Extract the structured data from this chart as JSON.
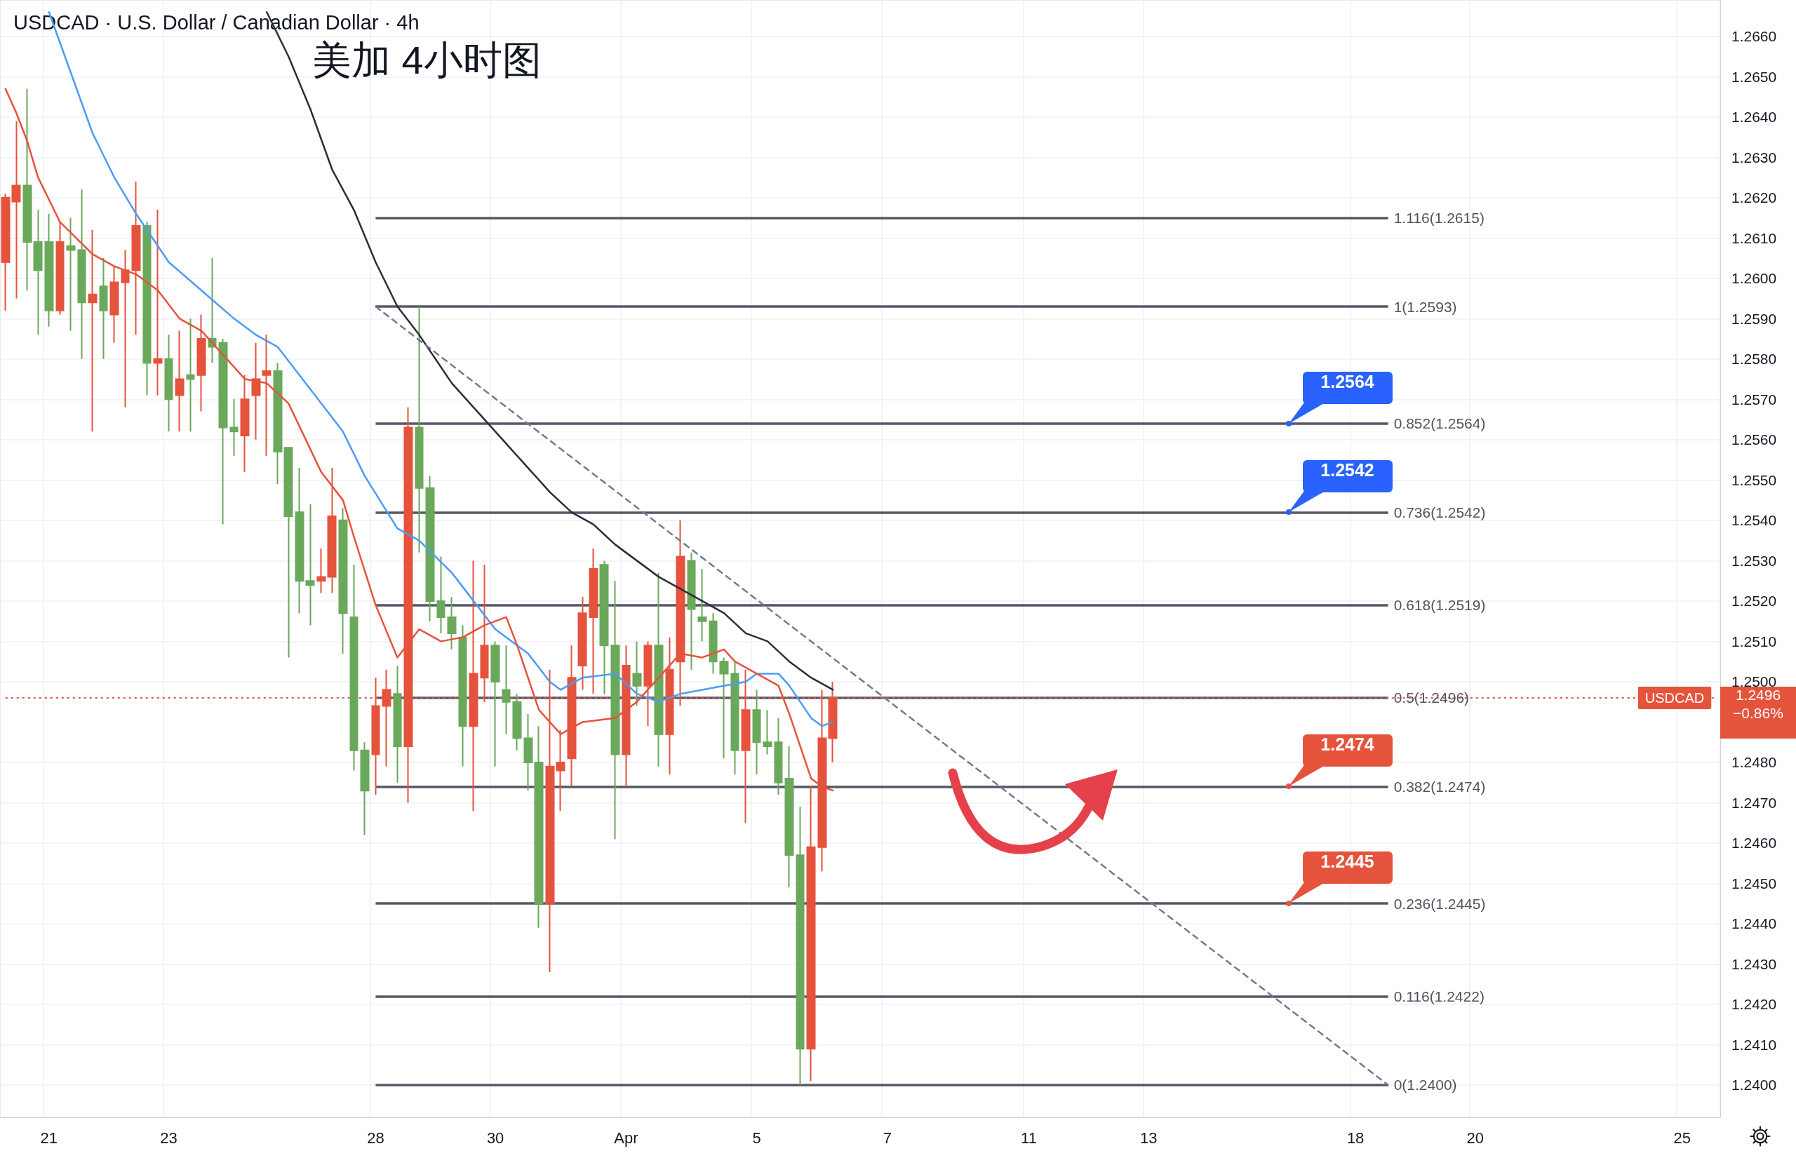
{
  "chart_data": {
    "type": "candlestick",
    "title": "USDCAD · U.S. Dollar / Canadian Dollar · 4h",
    "subtitle": "美加 4小时图",
    "categories": [
      null,
      null,
      null,
      null,
      "21",
      null,
      null,
      null,
      null,
      null,
      null,
      null,
      null,
      null,
      null,
      "23",
      null,
      null,
      null,
      null,
      null,
      null,
      null,
      null,
      null,
      null,
      null,
      null,
      null,
      null,
      null,
      null,
      null,
      null,
      "28",
      null,
      null,
      null,
      null,
      null,
      null,
      null,
      null,
      null,
      null,
      "30",
      null,
      null,
      null,
      null,
      null,
      null,
      null,
      null,
      null,
      null,
      null,
      "Apr",
      null,
      null,
      null,
      null,
      null,
      null,
      null,
      null,
      null,
      null,
      null,
      "5",
      null,
      null,
      null,
      null,
      null,
      null,
      null,
      null,
      null,
      null,
      null,
      "7",
      null,
      null,
      null,
      null,
      null,
      null,
      null,
      null,
      null,
      null,
      null,
      null,
      "11",
      null,
      null,
      null,
      null,
      null,
      null,
      null,
      null,
      null,
      null,
      "13",
      null,
      null,
      null,
      null,
      null,
      null,
      null,
      null,
      null,
      null,
      null,
      null,
      null,
      null,
      null,
      null,
      null,
      null,
      "18",
      null,
      null,
      null,
      null,
      null,
      null,
      null,
      null,
      null,
      null,
      "20",
      null,
      null,
      null,
      null,
      null,
      null,
      null,
      null,
      null,
      null,
      null,
      null,
      null,
      null,
      null,
      null,
      null,
      null,
      "25",
      null,
      null,
      null
    ],
    "ohlc": [
      [
        1.2604,
        1.2621,
        1.2592,
        1.262
      ],
      [
        1.2619,
        1.2639,
        1.2595,
        1.2623
      ],
      [
        1.2623,
        1.2647,
        1.2597,
        1.2609
      ],
      [
        1.2609,
        1.2617,
        1.2586,
        1.2602
      ],
      [
        1.2609,
        1.2616,
        1.2588,
        1.2592
      ],
      [
        1.2592,
        1.2614,
        1.2591,
        1.2609
      ],
      [
        1.2608,
        1.2615,
        1.2587,
        1.2607
      ],
      [
        1.2607,
        1.2622,
        1.258,
        1.2594
      ],
      [
        1.2594,
        1.2612,
        1.2562,
        1.2596
      ],
      [
        1.2598,
        1.2605,
        1.258,
        1.2592
      ],
      [
        1.2591,
        1.2603,
        1.2584,
        1.2599
      ],
      [
        1.2599,
        1.2607,
        1.2568,
        1.2602
      ],
      [
        1.2602,
        1.2624,
        1.2586,
        1.2613
      ],
      [
        1.2613,
        1.2614,
        1.2571,
        1.2579
      ],
      [
        1.2579,
        1.2617,
        1.2571,
        1.258
      ],
      [
        1.258,
        1.2586,
        1.2562,
        1.257
      ],
      [
        1.2571,
        1.2587,
        1.2562,
        1.2575
      ],
      [
        1.2576,
        1.259,
        1.2562,
        1.2575
      ],
      [
        1.2576,
        1.2591,
        1.2567,
        1.2585
      ],
      [
        1.2585,
        1.2605,
        1.2579,
        1.2583
      ],
      [
        1.2584,
        1.2585,
        1.2539,
        1.2563
      ],
      [
        1.2563,
        1.257,
        1.2556,
        1.2562
      ],
      [
        1.2561,
        1.2576,
        1.2552,
        1.257
      ],
      [
        1.2571,
        1.2584,
        1.256,
        1.2575
      ],
      [
        1.2576,
        1.2586,
        1.2556,
        1.2577
      ],
      [
        1.2577,
        1.2579,
        1.2549,
        1.2557
      ],
      [
        1.2558,
        1.2558,
        1.2506,
        1.2541
      ],
      [
        1.2542,
        1.2553,
        1.2517,
        1.2525
      ],
      [
        1.2525,
        1.2544,
        1.2514,
        1.2524
      ],
      [
        1.2525,
        1.2533,
        1.2522,
        1.2526
      ],
      [
        1.2526,
        1.2553,
        1.2522,
        1.2541
      ],
      [
        1.254,
        1.2543,
        1.2507,
        1.2517
      ],
      [
        1.2516,
        1.2529,
        1.2478,
        1.2483
      ],
      [
        1.2483,
        1.2485,
        1.2462,
        1.2473
      ],
      [
        1.2482,
        1.2501,
        1.2472,
        1.2494
      ],
      [
        1.2494,
        1.2503,
        1.2479,
        1.2498
      ],
      [
        1.2497,
        1.2504,
        1.2475,
        1.2484
      ],
      [
        1.2484,
        1.2568,
        1.247,
        1.2563
      ],
      [
        1.2563,
        1.2593,
        1.2532,
        1.2548
      ],
      [
        1.2548,
        1.2551,
        1.2515,
        1.252
      ],
      [
        1.252,
        1.2531,
        1.2512,
        1.2516
      ],
      [
        1.2516,
        1.2521,
        1.2508,
        1.2512
      ],
      [
        1.2511,
        1.2514,
        1.2479,
        1.2489
      ],
      [
        1.2489,
        1.253,
        1.2468,
        1.2502
      ],
      [
        1.2501,
        1.2529,
        1.2495,
        1.2509
      ],
      [
        1.2509,
        1.251,
        1.2479,
        1.25
      ],
      [
        1.2498,
        1.2509,
        1.2487,
        1.2495
      ],
      [
        1.2495,
        1.2497,
        1.2483,
        1.2486
      ],
      [
        1.2486,
        1.2492,
        1.2473,
        1.248
      ],
      [
        1.248,
        1.2489,
        1.2439,
        1.2445
      ],
      [
        1.2445,
        1.2503,
        1.2428,
        1.2479
      ],
      [
        1.2478,
        1.2488,
        1.2468,
        1.248
      ],
      [
        1.2481,
        1.2509,
        1.2474,
        1.2501
      ],
      [
        1.2504,
        1.2521,
        1.2498,
        1.2517
      ],
      [
        1.2516,
        1.2533,
        1.2497,
        1.2528
      ],
      [
        1.2529,
        1.253,
        1.2497,
        1.2509
      ],
      [
        1.2509,
        1.2525,
        1.2461,
        1.2482
      ],
      [
        1.2482,
        1.2509,
        1.2474,
        1.2504
      ],
      [
        1.2502,
        1.251,
        1.2494,
        1.2499
      ],
      [
        1.2499,
        1.251,
        1.2489,
        1.2509
      ],
      [
        1.2509,
        1.2527,
        1.2479,
        1.2487
      ],
      [
        1.2487,
        1.2511,
        1.2477,
        1.2503
      ],
      [
        1.2505,
        1.254,
        1.2494,
        1.2531
      ],
      [
        1.253,
        1.2532,
        1.2503,
        1.2518
      ],
      [
        1.2516,
        1.2528,
        1.251,
        1.2515
      ],
      [
        1.2515,
        1.2517,
        1.2502,
        1.2505
      ],
      [
        1.2505,
        1.2506,
        1.2481,
        1.2502
      ],
      [
        1.2502,
        1.2505,
        1.2477,
        1.2483
      ],
      [
        1.2483,
        1.2503,
        1.2465,
        1.2493
      ],
      [
        1.2493,
        1.2498,
        1.2477,
        1.2485
      ],
      [
        1.2485,
        1.2493,
        1.2482,
        1.2484
      ],
      [
        1.2485,
        1.2491,
        1.2472,
        1.2475
      ],
      [
        1.2476,
        1.2484,
        1.2449,
        1.2457
      ],
      [
        1.2457,
        1.2469,
        1.24,
        1.2409
      ],
      [
        1.2409,
        1.2474,
        1.2401,
        1.2459
      ],
      [
        1.2459,
        1.2498,
        1.2453,
        1.2486
      ],
      [
        1.2486,
        1.25,
        1.248,
        1.2496
      ],
      null,
      null,
      null,
      null,
      null,
      null,
      null,
      null,
      null,
      null,
      null,
      null,
      null,
      null,
      null,
      null,
      null,
      null,
      null,
      null,
      null,
      null,
      null,
      null,
      null,
      null,
      null,
      null,
      null,
      null,
      null,
      null,
      null,
      null,
      null,
      null,
      null,
      null,
      null,
      null,
      null,
      null,
      null,
      null,
      null,
      null,
      null,
      null,
      null,
      null,
      null,
      null,
      null,
      null,
      null,
      null,
      null,
      null,
      null,
      null,
      null,
      null,
      null,
      null,
      null,
      null,
      null,
      null,
      null,
      null,
      null,
      null,
      null,
      null,
      null,
      null,
      null,
      null,
      null,
      null,
      null
    ],
    "colors": [
      "#e5533d",
      "#e5533d",
      "#6aa85b",
      "#6aa85b",
      "#6aa85b",
      "#e5533d",
      "#6aa85b",
      "#6aa85b",
      "#e5533d",
      "#6aa85b",
      "#e5533d",
      "#e5533d",
      "#e5533d",
      "#6aa85b",
      "#e5533d",
      "#6aa85b",
      "#e5533d",
      "#6aa85b",
      "#e5533d",
      "#6aa85b",
      "#6aa85b",
      "#6aa85b",
      "#e5533d",
      "#e5533d",
      "#e5533d",
      "#6aa85b",
      "#6aa85b",
      "#6aa85b",
      "#6aa85b",
      "#e5533d",
      "#e5533d",
      "#6aa85b",
      "#6aa85b",
      "#6aa85b",
      "#e5533d",
      "#e5533d",
      "#6aa85b",
      "#e5533d",
      "#6aa85b",
      "#6aa85b",
      "#6aa85b",
      "#6aa85b",
      "#6aa85b",
      "#e5533d",
      "#e5533d",
      "#6aa85b",
      "#6aa85b",
      "#6aa85b",
      "#6aa85b",
      "#6aa85b",
      "#e5533d",
      "#e5533d",
      "#e5533d",
      "#e5533d",
      "#e5533d",
      "#6aa85b",
      "#6aa85b",
      "#e5533d",
      "#6aa85b",
      "#e5533d",
      "#6aa85b",
      "#e5533d",
      "#e5533d",
      "#6aa85b",
      "#6aa85b",
      "#6aa85b",
      "#6aa85b",
      "#6aa85b",
      "#e5533d",
      "#6aa85b",
      "#6aa85b",
      "#6aa85b",
      "#6aa85b",
      "#6aa85b",
      "#e5533d",
      "#e5533d",
      "#e5533d",
      null,
      null,
      null,
      null,
      null,
      null,
      null,
      null,
      null,
      null,
      null,
      null,
      null,
      null,
      null,
      null,
      null,
      null,
      null,
      null,
      null,
      null,
      null,
      null,
      null,
      null,
      null,
      null,
      null,
      null,
      null,
      null,
      null,
      null,
      null,
      null,
      null,
      null,
      null,
      null,
      null,
      null,
      null,
      null,
      null,
      null,
      null,
      null,
      null,
      null,
      null,
      null,
      null,
      null,
      null,
      null,
      null,
      null,
      null,
      null,
      null,
      null,
      null,
      null,
      null,
      null,
      null,
      null,
      null,
      null,
      null,
      null,
      null,
      null,
      null,
      null,
      null,
      null,
      null,
      null,
      null
    ],
    "series": [
      {
        "type": "line",
        "color": "#4b9cf5",
        "values": [
          null,
          null,
          null,
          null,
          1.2666,
          null,
          null,
          null,
          1.2636,
          null,
          1.2625,
          null,
          1.2616,
          null,
          null,
          1.2604,
          null,
          null,
          1.2597,
          null,
          null,
          1.259,
          null,
          1.2586,
          null,
          1.2583,
          null,
          1.2576,
          null,
          1.2569,
          null,
          1.2562,
          null,
          1.2551,
          null,
          null,
          1.2538,
          null,
          1.2535,
          null,
          null,
          1.2527,
          null,
          1.252,
          null,
          1.2513,
          null,
          null,
          1.2507,
          null,
          1.25,
          1.2498,
          null,
          1.2501,
          null,
          null,
          1.2502,
          null,
          1.2497,
          null,
          1.2495,
          null,
          1.2497,
          null,
          1.2498,
          null,
          1.2499,
          null,
          1.25,
          1.2502,
          null,
          1.2502,
          1.2499,
          null,
          1.2491,
          1.2489,
          1.249,
          null,
          null,
          null,
          null,
          null,
          null,
          null,
          null,
          null,
          null,
          null,
          null,
          null,
          null,
          null,
          null,
          null,
          null,
          null,
          null,
          null,
          null,
          null,
          null,
          null,
          null,
          null,
          null,
          null,
          null,
          null,
          null,
          null,
          null,
          null,
          null,
          null,
          null,
          null,
          null,
          null,
          null,
          null,
          null,
          null,
          null,
          null,
          null,
          null,
          null,
          null,
          null,
          null,
          null,
          null,
          null,
          null,
          null,
          null,
          null,
          null,
          null,
          null,
          null,
          null,
          null,
          null,
          null,
          null,
          null,
          null,
          null,
          null,
          null,
          null,
          null,
          null,
          null,
          null,
          null,
          null
        ]
      },
      {
        "type": "line",
        "color": "#e5533d",
        "values": [
          1.2647,
          1.2641,
          1.2634,
          1.2625,
          null,
          1.2614,
          null,
          null,
          1.2606,
          null,
          1.2603,
          null,
          1.2601,
          null,
          1.2597,
          null,
          1.259,
          null,
          1.2587,
          null,
          null,
          null,
          1.2575,
          null,
          1.2574,
          null,
          1.2569,
          null,
          null,
          1.2552,
          null,
          1.2545,
          1.2536,
          null,
          1.2519,
          null,
          1.2506,
          null,
          1.2513,
          null,
          1.251,
          null,
          1.2511,
          null,
          1.2514,
          null,
          1.2516,
          1.2509,
          null,
          1.2493,
          null,
          1.2487,
          null,
          1.249,
          null,
          null,
          1.2491,
          null,
          1.2495,
          null,
          1.2501,
          null,
          1.2507,
          null,
          1.2506,
          null,
          1.2508,
          1.2505,
          null,
          1.2502,
          null,
          1.2499,
          1.2492,
          null,
          1.2476,
          1.2474,
          1.2473,
          null,
          null,
          null,
          null,
          null,
          null,
          null,
          null,
          null,
          null,
          null,
          null,
          null,
          null,
          null,
          null,
          null,
          null,
          null,
          null,
          null,
          null,
          null,
          null,
          null,
          null,
          null,
          null,
          null,
          null,
          null,
          null,
          null,
          null,
          null,
          null,
          null,
          null,
          null,
          null,
          null,
          null,
          null,
          null,
          null,
          null,
          null,
          null,
          null,
          null,
          null,
          null,
          null,
          null,
          null,
          null,
          null,
          null,
          null,
          null,
          null,
          null,
          null,
          null,
          null,
          null,
          null,
          null,
          null,
          null,
          null,
          null,
          null,
          null,
          null,
          null,
          null,
          null,
          null,
          null,
          null
        ]
      },
      {
        "type": "line",
        "color": "#2a2e39",
        "values": [
          null,
          null,
          null,
          null,
          null,
          null,
          null,
          null,
          null,
          null,
          null,
          null,
          null,
          null,
          null,
          null,
          null,
          null,
          null,
          null,
          null,
          null,
          null,
          null,
          1.2666,
          null,
          1.2655,
          null,
          1.2642,
          null,
          1.2627,
          null,
          1.2617,
          null,
          1.2604,
          null,
          1.2593,
          null,
          1.2586,
          null,
          null,
          1.2574,
          null,
          1.2568,
          null,
          1.2562,
          null,
          null,
          1.2553,
          null,
          1.2547,
          null,
          1.2542,
          null,
          1.2539,
          null,
          1.2534,
          null,
          1.253,
          null,
          1.2526,
          null,
          1.2523,
          null,
          1.252,
          null,
          1.2517,
          null,
          1.2512,
          null,
          1.251,
          null,
          1.2505,
          null,
          1.2501,
          null,
          1.2498,
          null,
          null,
          null,
          null,
          null,
          null,
          null,
          null,
          null,
          null,
          null,
          null,
          null,
          null,
          null,
          null,
          null,
          null,
          null,
          null,
          null,
          null,
          null,
          null,
          null,
          null,
          null,
          null,
          null,
          null,
          null,
          null,
          null,
          null,
          null,
          null,
          null,
          null,
          null,
          null,
          null,
          null,
          null,
          null,
          null,
          null,
          null,
          null,
          null,
          null,
          null,
          null,
          null,
          null,
          null,
          null,
          null,
          null,
          null,
          null,
          null,
          null,
          null,
          null,
          null,
          null,
          null,
          null,
          null,
          null,
          null,
          null,
          null,
          null,
          null,
          null,
          null,
          null,
          null,
          null,
          null
        ]
      },
      {
        "type": "line",
        "color": "#787b86",
        "line_style": "dashed",
        "values": [
          null,
          null,
          null,
          null,
          null,
          null,
          null,
          null,
          null,
          null,
          null,
          null,
          null,
          null,
          null,
          null,
          null,
          null,
          null,
          null,
          null,
          null,
          null,
          null,
          null,
          null,
          null,
          null,
          null,
          null,
          null,
          null,
          null,
          null,
          1.2593,
          null,
          null,
          null,
          null,
          null,
          null,
          null,
          null,
          null,
          null,
          null,
          null,
          null,
          null,
          null,
          null,
          null,
          null,
          null,
          null,
          null,
          null,
          null,
          null,
          null,
          null,
          null,
          null,
          null,
          null,
          null,
          null,
          null,
          null,
          null,
          null,
          null,
          null,
          null,
          null,
          null,
          null,
          null,
          null,
          null,
          null,
          null,
          null,
          null,
          null,
          null,
          null,
          null,
          null,
          null,
          null,
          null,
          null,
          null,
          null,
          null,
          null,
          null,
          null,
          null,
          null,
          null,
          null,
          null,
          null,
          null,
          null,
          null,
          null,
          null,
          null,
          null,
          null,
          null,
          null,
          null,
          null,
          null,
          null,
          null,
          null,
          null,
          null,
          null,
          null,
          null,
          null,
          1.24,
          null,
          null,
          null,
          null,
          null,
          null,
          null,
          null,
          null,
          null,
          null,
          null,
          null,
          null,
          null,
          null,
          null,
          null,
          null,
          null,
          null,
          null,
          null,
          null,
          null,
          null,
          null,
          null,
          null,
          null
        ]
      }
    ],
    "ylim": [
      1.2392,
      1.2669
    ],
    "yticks": [
      {
        "value": 1.24,
        "label": "1.2400"
      },
      {
        "value": 1.241,
        "label": "1.2410"
      },
      {
        "value": 1.242,
        "label": "1.2420"
      },
      {
        "value": 1.243,
        "label": "1.2430"
      },
      {
        "value": 1.244,
        "label": "1.2440"
      },
      {
        "value": 1.245,
        "label": "1.2450"
      },
      {
        "value": 1.246,
        "label": "1.2460"
      },
      {
        "value": 1.247,
        "label": "1.2470"
      },
      {
        "value": 1.248,
        "label": "1.2480"
      },
      {
        "value": 1.25,
        "label": "1.2500"
      },
      {
        "value": 1.251,
        "label": "1.2510"
      },
      {
        "value": 1.252,
        "label": "1.2520"
      },
      {
        "value": 1.253,
        "label": "1.2530"
      },
      {
        "value": 1.254,
        "label": "1.2540"
      },
      {
        "value": 1.255,
        "label": "1.2550"
      },
      {
        "value": 1.256,
        "label": "1.2560"
      },
      {
        "value": 1.257,
        "label": "1.2570"
      },
      {
        "value": 1.258,
        "label": "1.2580"
      },
      {
        "value": 1.259,
        "label": "1.2590"
      },
      {
        "value": 1.26,
        "label": "1.2600"
      },
      {
        "value": 1.261,
        "label": "1.2610"
      },
      {
        "value": 1.262,
        "label": "1.2620"
      },
      {
        "value": 1.263,
        "label": "1.2630"
      },
      {
        "value": 1.264,
        "label": "1.2640"
      },
      {
        "value": 1.265,
        "label": "1.2650"
      },
      {
        "value": 1.266,
        "label": "1.2660"
      }
    ],
    "ref_lines": [
      {
        "axis": "y",
        "value": 1.2615,
        "label": "1.116(1.2615)",
        "color": "#555866"
      },
      {
        "axis": "y",
        "value": 1.2593,
        "label": "1(1.2593)",
        "color": "#555866"
      },
      {
        "axis": "y",
        "value": 1.2564,
        "label": "0.852(1.2564)",
        "color": "#555866"
      },
      {
        "axis": "y",
        "value": 1.2542,
        "label": "0.736(1.2542)",
        "color": "#555866"
      },
      {
        "axis": "y",
        "value": 1.2519,
        "label": "0.618(1.2519)",
        "color": "#555866"
      },
      {
        "axis": "y",
        "value": 1.2496,
        "label": "0.5(1.2496)",
        "color": "#555866"
      },
      {
        "axis": "y",
        "value": 1.2474,
        "label": "0.382(1.2474)",
        "color": "#555866"
      },
      {
        "axis": "y",
        "value": 1.2445,
        "label": "0.236(1.2445)",
        "color": "#555866"
      },
      {
        "axis": "y",
        "value": 1.2422,
        "label": "0.116(1.2422)",
        "color": "#555866"
      },
      {
        "axis": "y",
        "value": 1.24,
        "label": "0(1.2400)",
        "color": "#555866"
      },
      {
        "axis": "y",
        "value": 1.2496,
        "label": "USDCAD",
        "color": "#e5533d",
        "line_style": "dotted"
      }
    ],
    "annotations": [
      {
        "text": "1.2564",
        "y": 1.2564
      },
      {
        "text": "1.2542",
        "y": 1.2542
      },
      {
        "text": "1.2474",
        "y": 1.2474
      },
      {
        "text": "1.2445",
        "y": 1.2445
      },
      "1.2496",
      "−0.86%"
    ],
    "grid": true,
    "marker": "none"
  }
}
